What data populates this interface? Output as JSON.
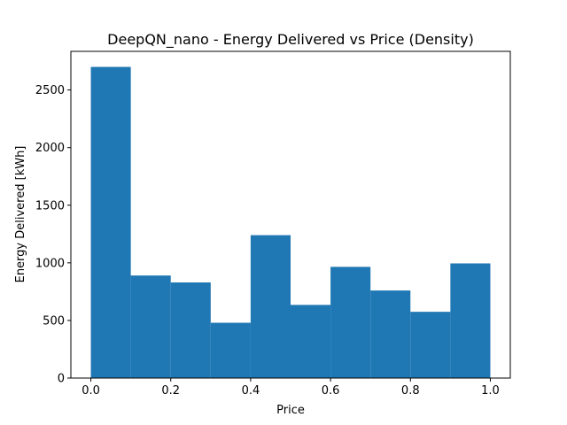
{
  "chart_data": {
    "type": "bar",
    "title": "DeepQN_nano - Energy Delivered vs Price (Density)",
    "xlabel": "Price",
    "ylabel": "Energy Delivered [kWh]",
    "bin_edges": [
      0.0,
      0.1,
      0.2,
      0.3,
      0.4,
      0.5,
      0.6,
      0.7,
      0.8,
      0.9,
      1.0
    ],
    "values": [
      2700,
      890,
      830,
      480,
      1240,
      635,
      965,
      760,
      575,
      995
    ],
    "xlim": [
      -0.05,
      1.05
    ],
    "ylim": [
      0,
      2835
    ],
    "xticks": [
      0.0,
      0.2,
      0.4,
      0.6,
      0.8,
      1.0
    ],
    "xtick_labels": [
      "0.0",
      "0.2",
      "0.4",
      "0.6",
      "0.8",
      "1.0"
    ],
    "yticks": [
      0,
      500,
      1000,
      1500,
      2000,
      2500
    ],
    "ytick_labels": [
      "0",
      "500",
      "1000",
      "1500",
      "2000",
      "2500"
    ],
    "bar_color": "#1f77b4",
    "grid": false,
    "legend": "none"
  }
}
